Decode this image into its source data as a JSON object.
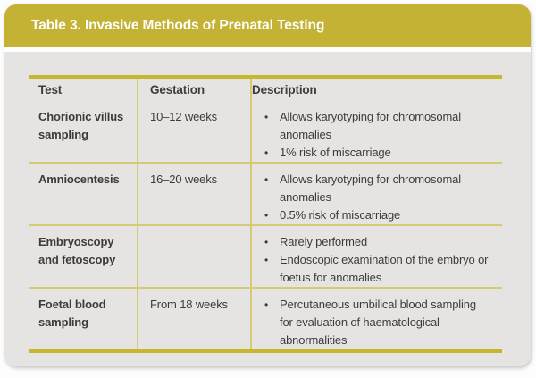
{
  "title": "Table 3. Invasive Methods of Prenatal Testing",
  "colors": {
    "title_bar_bg": "#c4b234",
    "title_text": "#ffffff",
    "card_body_bg": "#e5e4e2",
    "rule_thick": "#c6b72e",
    "rule_thin": "#d6cb74",
    "body_text": "#3c3c3c"
  },
  "table": {
    "bullet_char": "•",
    "columns": [
      "Test",
      "Gestation",
      "Description"
    ],
    "rows": [
      {
        "test": "Chorionic villus sampling",
        "gestation": "10–12 weeks",
        "description": [
          "Allows karyotyping for chromosomal anomalies",
          "1% risk of miscarriage"
        ]
      },
      {
        "test": "Amniocentesis",
        "gestation": "16–20 weeks",
        "description": [
          "Allows karyotyping for chromosomal anomalies",
          "0.5% risk of miscarriage"
        ]
      },
      {
        "test": "Embryoscopy and fetoscopy",
        "gestation": "",
        "description": [
          "Rarely performed",
          "Endoscopic examination of the embryo or foetus for anomalies"
        ]
      },
      {
        "test": "Foetal blood sampling",
        "gestation": "From 18 weeks",
        "description": [
          "Percutaneous umbilical blood sampling for evaluation of haematological abnormalities"
        ]
      }
    ]
  }
}
